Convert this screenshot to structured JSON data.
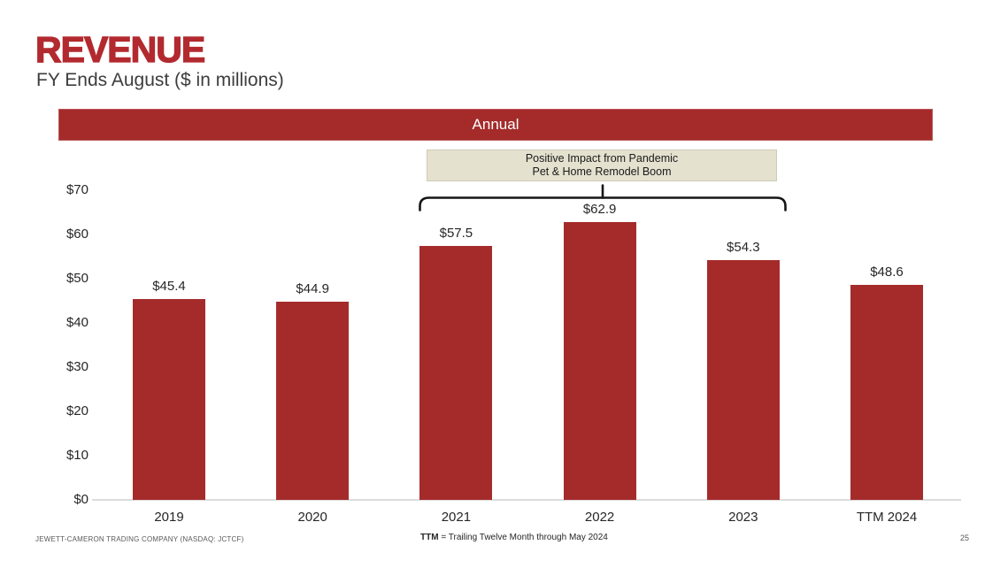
{
  "slide": {
    "title": "REVENUE",
    "subtitle": "FY Ends August ($ in millions)",
    "banner_label": "Annual",
    "annotation_line1": "Positive Impact from Pandemic",
    "annotation_line2": "Pet & Home Remodel Boom",
    "footer_left": "JEWETT-CAMERON TRADING COMPANY (NASDAQ: JCTCF)",
    "footer_center_bold": "TTM",
    "footer_center_rest": " = Trailing Twelve Month through May 2024",
    "page_number": "25"
  },
  "colors": {
    "accent_red": "#A52B2B",
    "title_red": "#B22A2F",
    "annotation_bg": "#E4E1CF",
    "axis_line": "#DCDCDC",
    "text_dark": "#262626"
  },
  "chart_data": {
    "type": "bar",
    "title": "Annual",
    "categories": [
      "2019",
      "2020",
      "2021",
      "2022",
      "2023",
      "TTM 2024"
    ],
    "values": [
      45.4,
      44.9,
      57.5,
      62.9,
      54.3,
      48.6
    ],
    "data_labels": [
      "$45.4",
      "$44.9",
      "$57.5",
      "$62.9",
      "$54.3",
      "$48.6"
    ],
    "ytick_labels": [
      "$0",
      "$10",
      "$20",
      "$30",
      "$40",
      "$50",
      "$60",
      "$70"
    ],
    "ylim": [
      0,
      70
    ],
    "ytick_step": 10,
    "grid": false,
    "legend": false,
    "bar_color": "#A52B2B",
    "annotation": "Positive Impact from Pandemic Pet & Home Remodel Boom",
    "annotation_span_categories": [
      "2021",
      "2022",
      "2023"
    ]
  }
}
